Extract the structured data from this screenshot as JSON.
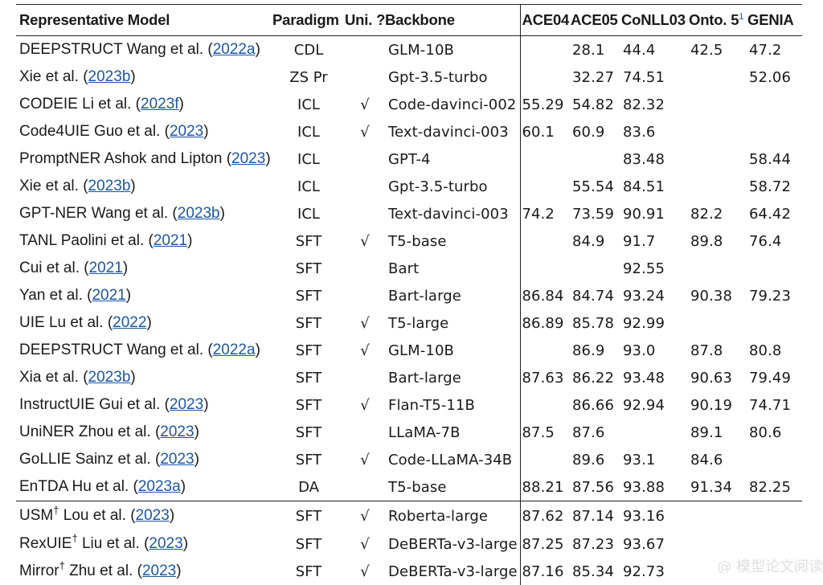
{
  "headers": {
    "model": "Representative Model",
    "paradigm": "Paradigm",
    "uni": "Uni. ?",
    "backbone": "Backbone",
    "ace04": "ACE04",
    "ace05": "ACE05",
    "conll03": "CoNLL03",
    "onto5": "Onto. 5",
    "onto5_sup": "1",
    "genia": "GENIA"
  },
  "rows": [
    {
      "name": "DEEPSTRUCT Wang et al. (",
      "cite": "2022a",
      "close": ")",
      "paradigm": "CDL",
      "uni": "",
      "backbone": "GLM-10B",
      "ace04": "",
      "ace05": "28.1",
      "conll03": "44.4",
      "onto5": "42.5",
      "genia": "47.2"
    },
    {
      "name": " Xie et al. (",
      "cite": "2023b",
      "close": ")",
      "paradigm": "ZS Pr",
      "uni": "",
      "backbone": "Gpt-3.5-turbo",
      "ace04": "",
      "ace05": "32.27",
      "conll03": "74.51",
      "onto5": "",
      "genia": "52.06"
    },
    {
      "name": "CODEIE Li et al. (",
      "cite": "2023f",
      "close": ")",
      "paradigm": "ICL",
      "uni": "√",
      "backbone": "Code-davinci-002",
      "ace04": "55.29",
      "ace05": "54.82",
      "conll03": "82.32",
      "onto5": "",
      "genia": ""
    },
    {
      "name": "Code4UIE Guo et al. (",
      "cite": "2023",
      "close": ")",
      "paradigm": "ICL",
      "uni": "√",
      "backbone": "Text-davinci-003",
      "ace04": "60.1",
      "ace05": "60.9",
      "conll03": "83.6",
      "onto5": "",
      "genia": ""
    },
    {
      "name": "PromptNER Ashok and Lipton (",
      "cite": "2023",
      "close": ")",
      "paradigm": "ICL",
      "uni": "",
      "backbone": "GPT-4",
      "ace04": "",
      "ace05": "",
      "conll03": "83.48",
      "onto5": "",
      "genia": "58.44"
    },
    {
      "name": " Xie et al. (",
      "cite": "2023b",
      "close": ")",
      "paradigm": "ICL",
      "uni": "",
      "backbone": "Gpt-3.5-turbo",
      "ace04": "",
      "ace05": "55.54",
      "conll03": "84.51",
      "onto5": "",
      "genia": "58.72"
    },
    {
      "name": "GPT-NER Wang et al. (",
      "cite": "2023b",
      "close": ")",
      "paradigm": "ICL",
      "uni": "",
      "backbone": "Text-davinci-003",
      "ace04": "74.2",
      "ace05": "73.59",
      "conll03": "90.91",
      "onto5": "82.2",
      "genia": "64.42"
    },
    {
      "name": "TANL Paolini et al. (",
      "cite": "2021",
      "close": ")",
      "paradigm": "SFT",
      "uni": "√",
      "backbone": "T5-base",
      "ace04": "",
      "ace05": "84.9",
      "conll03": "91.7",
      "onto5": "89.8",
      "genia": "76.4"
    },
    {
      "name": " Cui et al. (",
      "cite": "2021",
      "close": ")",
      "paradigm": "SFT",
      "uni": "",
      "backbone": "Bart",
      "ace04": "",
      "ace05": "",
      "conll03": "92.55",
      "onto5": "",
      "genia": ""
    },
    {
      "name": " Yan et al. (",
      "cite": "2021",
      "close": ")",
      "paradigm": "SFT",
      "uni": "",
      "backbone": "Bart-large",
      "ace04": "86.84",
      "ace05": "84.74",
      "conll03": "93.24",
      "onto5": "90.38",
      "genia": "79.23"
    },
    {
      "name": "UIE Lu et al. (",
      "cite": "2022",
      "close": ")",
      "paradigm": "SFT",
      "uni": "√",
      "backbone": "T5-large",
      "ace04": "86.89",
      "ace05": "85.78",
      "conll03": "92.99",
      "onto5": "",
      "genia": ""
    },
    {
      "name": "DEEPSTRUCT Wang et al. (",
      "cite": "2022a",
      "close": ")",
      "paradigm": "SFT",
      "uni": "√",
      "backbone": "GLM-10B",
      "ace04": "",
      "ace05": "86.9",
      "conll03": "93.0",
      "onto5": "87.8",
      "genia": "80.8"
    },
    {
      "name": " Xia et al. (",
      "cite": "2023b",
      "close": ")",
      "paradigm": "SFT",
      "uni": "",
      "backbone": "Bart-large",
      "ace04": "87.63",
      "ace05": "86.22",
      "conll03": "93.48",
      "onto5": "90.63",
      "genia": "79.49"
    },
    {
      "name": "InstructUIE Gui et al. (",
      "cite": "2023",
      "close": ")",
      "paradigm": "SFT",
      "uni": "√",
      "backbone": "Flan-T5-11B",
      "ace04": "",
      "ace05": "86.66",
      "conll03": "92.94",
      "onto5": "90.19",
      "genia": "74.71"
    },
    {
      "name": "UniNER Zhou et al. (",
      "cite": "2023",
      "close": ")",
      "paradigm": "SFT",
      "uni": "",
      "backbone": "LLaMA-7B",
      "ace04": "87.5",
      "ace05": "87.6",
      "conll03": "",
      "onto5": "89.1",
      "genia": "80.6"
    },
    {
      "name": "GoLLIE Sainz et al. (",
      "cite": "2023",
      "close": ")",
      "paradigm": "SFT",
      "uni": "√",
      "backbone": "Code-LLaMA-34B",
      "ace04": "",
      "ace05": "89.6",
      "conll03": "93.1",
      "onto5": "84.6",
      "genia": ""
    },
    {
      "name": "EnTDA Hu et al. (",
      "cite": "2023a",
      "close": ")",
      "paradigm": "DA",
      "uni": "",
      "backbone": "T5-base",
      "ace04": "88.21",
      "ace05": "87.56",
      "conll03": "93.88",
      "onto5": "91.34",
      "genia": "82.25"
    },
    {
      "name": "USM",
      "dagger": "†",
      "name2": " Lou et al. (",
      "cite": "2023",
      "close": ")",
      "paradigm": "SFT",
      "uni": "√",
      "backbone": "Roberta-large",
      "ace04": "87.62",
      "ace05": "87.14",
      "conll03": "93.16",
      "onto5": "",
      "genia": ""
    },
    {
      "name": "RexUIE",
      "dagger": "†",
      "name2": " Liu et al. (",
      "cite": "2023",
      "close": ")",
      "paradigm": "SFT",
      "uni": "√",
      "backbone": "DeBERTa-v3-large",
      "ace04": "87.25",
      "ace05": "87.23",
      "conll03": "93.67",
      "onto5": "",
      "genia": ""
    },
    {
      "name": "Mirror",
      "dagger": "†",
      "name2": " Zhu et al. (",
      "cite": "2023",
      "close": ")",
      "paradigm": "SFT",
      "uni": "√",
      "backbone": "DeBERTa-v3-large",
      "ace04": "87.16",
      "ace05": "85.34",
      "conll03": "92.73",
      "onto5": "",
      "genia": ""
    }
  ],
  "group_start_index": 17,
  "watermark": "@ 模型论文阅读"
}
